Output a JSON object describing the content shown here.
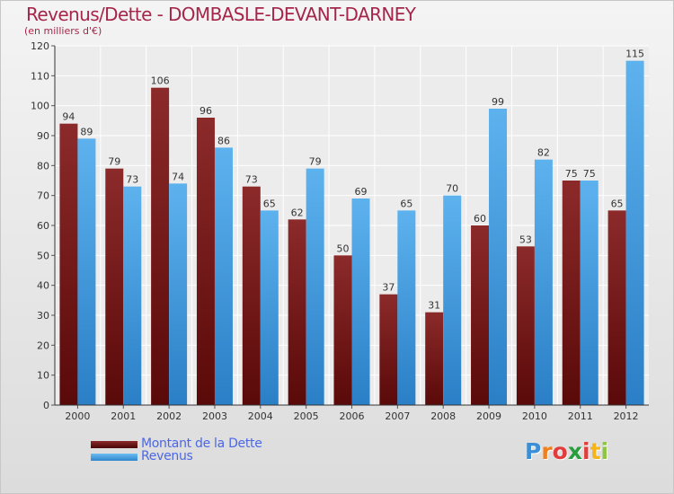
{
  "chart_data": {
    "type": "bar",
    "title": "Revenus/Dette - DOMBASLE-DEVANT-DARNEY",
    "subtitle": "(en milliers d'€)",
    "categories": [
      "2000",
      "2001",
      "2002",
      "2003",
      "2004",
      "2005",
      "2006",
      "2007",
      "2008",
      "2009",
      "2010",
      "2011",
      "2012"
    ],
    "series": [
      {
        "name": "Montant de la Dette",
        "color": "#7a1c1c",
        "values": [
          94,
          79,
          106,
          96,
          73,
          62,
          50,
          37,
          31,
          60,
          53,
          75,
          65
        ]
      },
      {
        "name": "Revenus",
        "color": "#4aa3e6",
        "values": [
          89,
          73,
          74,
          86,
          65,
          79,
          69,
          65,
          70,
          99,
          82,
          75,
          115
        ]
      }
    ],
    "ylim": [
      0,
      120
    ],
    "yticks": [
      0,
      10,
      20,
      30,
      40,
      50,
      60,
      70,
      80,
      90,
      100,
      110,
      120
    ],
    "grid": true,
    "legend": "bottom-left"
  },
  "logo": {
    "letters": [
      "P",
      "r",
      "o",
      "x",
      "i",
      "t",
      "i"
    ],
    "colors": [
      "#3c8fd6",
      "#f07f1c",
      "#e23c3c",
      "#2a9d3d",
      "#e23c3c",
      "#f4b41a",
      "#8dc63f"
    ]
  }
}
